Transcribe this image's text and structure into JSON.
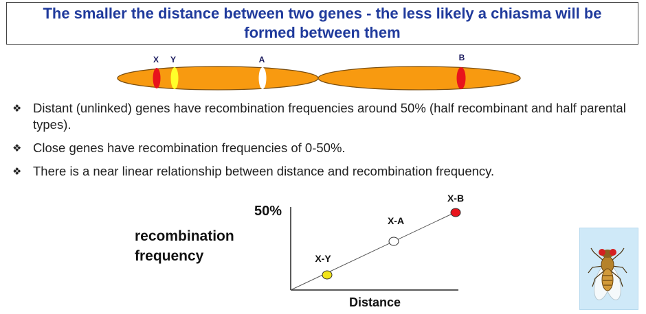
{
  "title": {
    "line1": "The smaller the distance between two genes - the less likely a chiasma will be",
    "line2": "formed between them"
  },
  "chromosome": {
    "genes": [
      {
        "label": "X",
        "color": "#e8141c"
      },
      {
        "label": "Y",
        "color": "#ffff2a"
      },
      {
        "label": "A",
        "color": "#ffffff"
      },
      {
        "label": "B",
        "color": "#e8141c"
      }
    ],
    "body_color": "#f89a10"
  },
  "bullets": [
    {
      "icon": "diamond-bullet-icon",
      "text": "Distant (unlinked) genes have recombination frequencies around 50% (half recombinant and half parental types)."
    },
    {
      "icon": "diamond-bullet-icon",
      "text": "Close genes have recombination frequencies of 0-50%."
    },
    {
      "icon": "diamond-bullet-icon",
      "text": "There is a near linear relationship between distance and recombination frequency."
    }
  ],
  "chart_data": {
    "type": "scatter",
    "ylabel": [
      "recombination",
      "frequency"
    ],
    "xlabel": "Distance",
    "y_tick": "50%",
    "points": [
      {
        "label": "X-Y",
        "color": "#f2e41a"
      },
      {
        "label": "X-A",
        "color": "#ffffff"
      },
      {
        "label": "X-B",
        "color": "#e8141c"
      }
    ],
    "trend": "linear"
  },
  "image": {
    "icon": "fruit-fly-icon"
  }
}
